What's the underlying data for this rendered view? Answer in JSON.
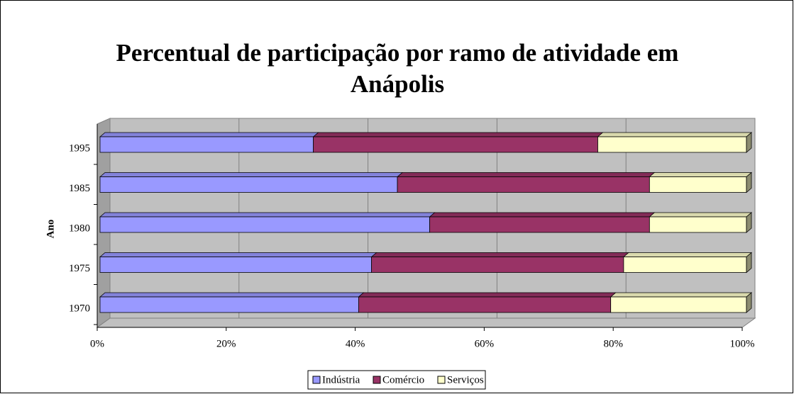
{
  "chart_data": {
    "type": "bar3d_stacked_percent_horizontal",
    "title": "Percentual de participação por ramo de atividade em Anápolis",
    "y_label": "Ano",
    "categories": [
      "1970",
      "1975",
      "1980",
      "1985",
      "1995"
    ],
    "series": [
      {
        "name": "Indústria",
        "color": "#9999ff",
        "values": [
          40,
          42,
          51,
          46,
          33
        ]
      },
      {
        "name": "Comércio",
        "color": "#993366",
        "values": [
          39,
          39,
          34,
          39,
          44
        ]
      },
      {
        "name": "Serviços",
        "color": "#ffffcc",
        "values": [
          21,
          19,
          15,
          15,
          23
        ]
      }
    ],
    "xlim": [
      0,
      100
    ],
    "xticks": [
      {
        "value": 0,
        "label": "0%"
      },
      {
        "value": 20,
        "label": "20%"
      },
      {
        "value": 40,
        "label": "40%"
      },
      {
        "value": 60,
        "label": "60%"
      },
      {
        "value": 80,
        "label": "80%"
      },
      {
        "value": 100,
        "label": "100%"
      }
    ],
    "grid": true,
    "legend": "bottom"
  }
}
